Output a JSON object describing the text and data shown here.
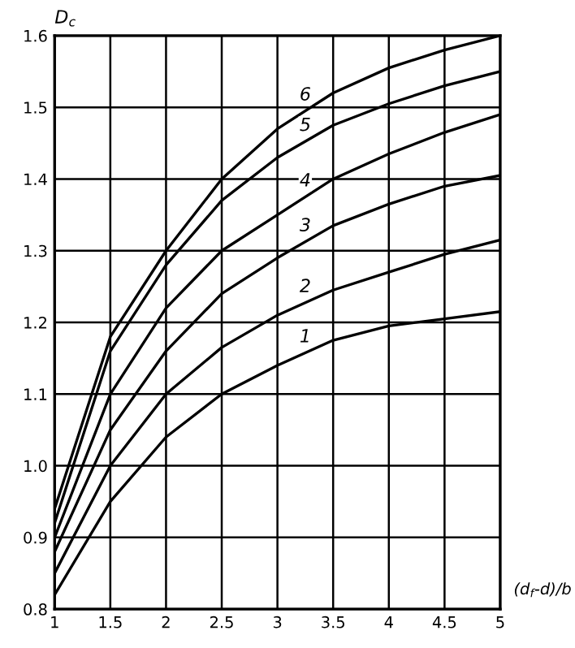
{
  "chart_data": {
    "type": "line",
    "xlabel": "(d$_{f}$-d)/b",
    "ylabel": "D$_{c}$",
    "x": [
      1,
      1.5,
      2,
      2.5,
      3,
      3.5,
      4,
      4.5,
      5
    ],
    "series": [
      {
        "name": "1",
        "color": "#000000",
        "values": [
          0.82,
          0.95,
          1.04,
          1.1,
          1.14,
          1.175,
          1.195,
          1.205,
          1.215
        ]
      },
      {
        "name": "2",
        "color": "#000000",
        "values": [
          0.85,
          1.0,
          1.1,
          1.165,
          1.21,
          1.245,
          1.27,
          1.295,
          1.315
        ]
      },
      {
        "name": "3",
        "color": "#000000",
        "values": [
          0.88,
          1.05,
          1.16,
          1.24,
          1.29,
          1.335,
          1.365,
          1.39,
          1.405
        ]
      },
      {
        "name": "4",
        "color": "#000000",
        "values": [
          0.9,
          1.1,
          1.22,
          1.3,
          1.35,
          1.4,
          1.435,
          1.465,
          1.49
        ]
      },
      {
        "name": "5",
        "color": "#000000",
        "values": [
          0.92,
          1.16,
          1.28,
          1.37,
          1.43,
          1.475,
          1.505,
          1.53,
          1.55
        ]
      },
      {
        "name": "6",
        "color": "#000000",
        "values": [
          0.94,
          1.18,
          1.3,
          1.4,
          1.47,
          1.52,
          1.555,
          1.58,
          1.6
        ]
      }
    ],
    "xlim": [
      1,
      5
    ],
    "ylim": [
      0.8,
      1.6
    ],
    "xticks": [
      1,
      1.5,
      2,
      2.5,
      3,
      3.5,
      4,
      4.5,
      5
    ],
    "yticks": [
      0.8,
      0.9,
      {
        "value": 1.0,
        "label": "1.0"
      },
      1.1,
      1.2,
      1.3,
      1.4,
      1.5,
      1.6
    ],
    "grid": true,
    "line_style": "solid",
    "marker": "none"
  }
}
